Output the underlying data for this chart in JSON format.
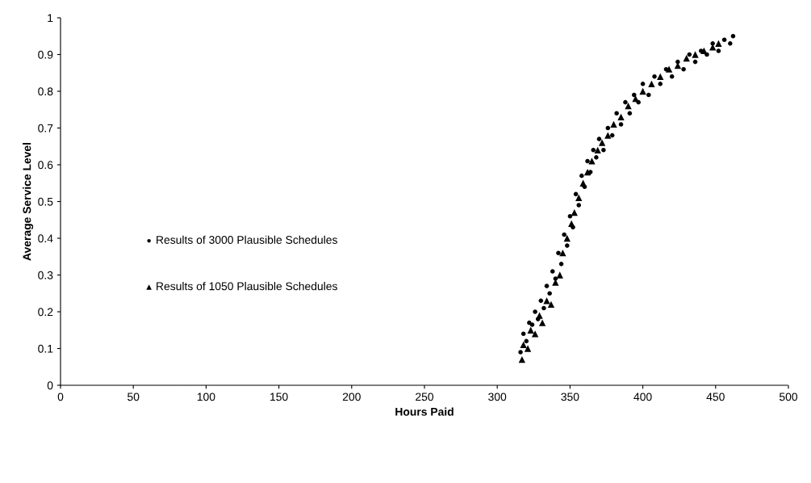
{
  "chart_data": {
    "type": "scatter",
    "xlabel": "Hours Paid",
    "ylabel": "Average Service Level",
    "xlim": [
      0,
      500
    ],
    "xticks": [
      0,
      50,
      100,
      150,
      200,
      250,
      300,
      350,
      400,
      450,
      500
    ],
    "ylim": [
      0,
      1
    ],
    "yticks": [
      0,
      0.1,
      0.2,
      0.3,
      0.4,
      0.5,
      0.6,
      0.7,
      0.8,
      0.9,
      1
    ],
    "grid": false,
    "legend": "left",
    "series": [
      {
        "name": "Results of 3000 Plausible Schedules",
        "color": "#000000",
        "marker": "circle",
        "x": [
          316,
          318,
          320,
          322,
          324,
          326,
          328,
          330,
          332,
          334,
          336,
          338,
          340,
          342,
          344,
          346,
          348,
          350,
          352,
          354,
          356,
          358,
          360,
          362,
          364,
          366,
          368,
          370,
          373,
          376,
          379,
          382,
          385,
          388,
          391,
          394,
          397,
          400,
          404,
          408,
          412,
          416,
          420,
          424,
          428,
          432,
          436,
          440,
          444,
          448,
          452,
          456,
          460,
          462
        ],
        "values": [
          0.09,
          0.14,
          0.12,
          0.17,
          0.165,
          0.2,
          0.18,
          0.23,
          0.21,
          0.27,
          0.25,
          0.31,
          0.29,
          0.36,
          0.33,
          0.41,
          0.38,
          0.46,
          0.43,
          0.52,
          0.49,
          0.57,
          0.54,
          0.61,
          0.58,
          0.64,
          0.62,
          0.67,
          0.64,
          0.7,
          0.68,
          0.74,
          0.71,
          0.77,
          0.74,
          0.79,
          0.77,
          0.82,
          0.79,
          0.84,
          0.82,
          0.86,
          0.84,
          0.88,
          0.86,
          0.9,
          0.88,
          0.91,
          0.9,
          0.93,
          0.91,
          0.94,
          0.93,
          0.95
        ]
      },
      {
        "name": "Results of 1050 Plausible Schedules",
        "color": "#000000",
        "marker": "triangle",
        "x": [
          317,
          318,
          321,
          323,
          326,
          329,
          331,
          334,
          337,
          340,
          343,
          345,
          348,
          351,
          353,
          356,
          359,
          362,
          365,
          369,
          372,
          376,
          380,
          385,
          390,
          395,
          400,
          406,
          412,
          418,
          424,
          430,
          436,
          442,
          448,
          452
        ],
        "values": [
          0.07,
          0.11,
          0.1,
          0.15,
          0.14,
          0.19,
          0.17,
          0.23,
          0.22,
          0.28,
          0.3,
          0.36,
          0.4,
          0.44,
          0.47,
          0.51,
          0.55,
          0.58,
          0.61,
          0.64,
          0.66,
          0.68,
          0.71,
          0.73,
          0.76,
          0.78,
          0.8,
          0.82,
          0.84,
          0.86,
          0.87,
          0.89,
          0.9,
          0.91,
          0.92,
          0.93
        ]
      }
    ]
  }
}
